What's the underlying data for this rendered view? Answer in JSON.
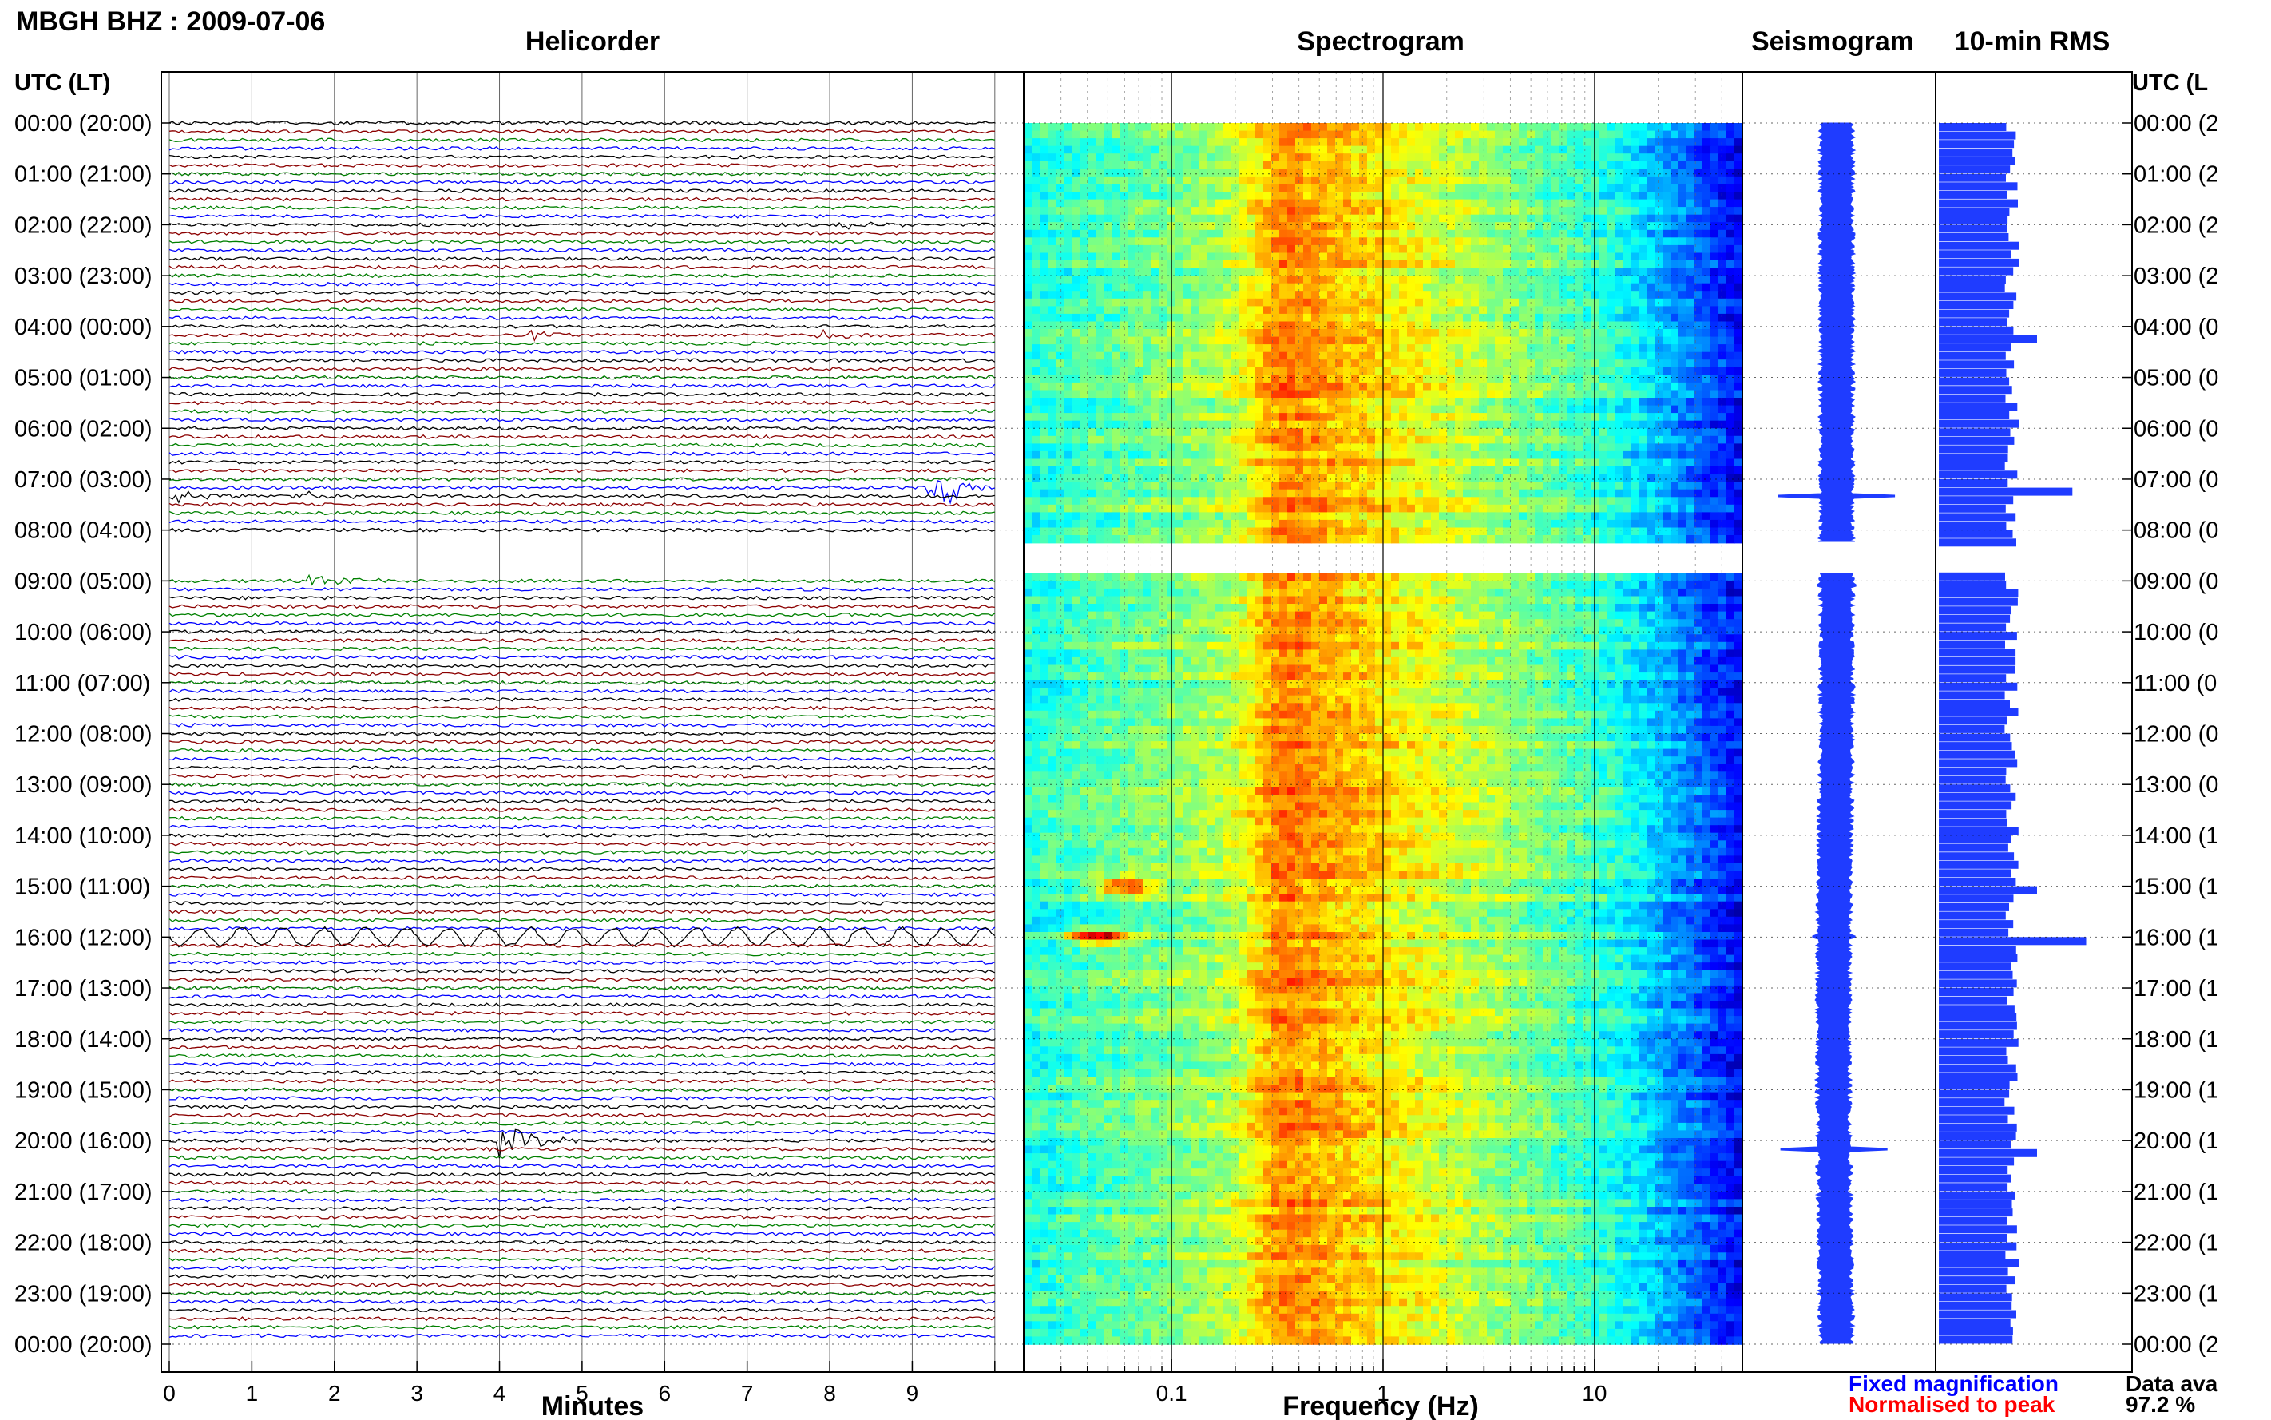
{
  "header": {
    "title": "MBGH BHZ : 2009-07-06"
  },
  "panels": {
    "helicorder": "Helicorder",
    "spectrogram": "Spectrogram",
    "seismogram": "Seismogram",
    "rms": "10-min RMS"
  },
  "time_axis": {
    "header_left": "UTC (LT)",
    "header_right": "UTC (L",
    "rows": [
      {
        "left": "00:00 (20:00)",
        "right": "00:00 (2"
      },
      {
        "left": "01:00 (21:00)",
        "right": "01:00 (2"
      },
      {
        "left": "02:00 (22:00)",
        "right": "02:00 (2"
      },
      {
        "left": "03:00 (23:00)",
        "right": "03:00 (2"
      },
      {
        "left": "04:00 (00:00)",
        "right": "04:00 (0"
      },
      {
        "left": "05:00 (01:00)",
        "right": "05:00 (0"
      },
      {
        "left": "06:00 (02:00)",
        "right": "06:00 (0"
      },
      {
        "left": "07:00 (03:00)",
        "right": "07:00 (0"
      },
      {
        "left": "08:00 (04:00)",
        "right": "08:00 (0"
      },
      {
        "left": "09:00 (05:00)",
        "right": "09:00 (0"
      },
      {
        "left": "10:00 (06:00)",
        "right": "10:00 (0"
      },
      {
        "left": "11:00 (07:00)",
        "right": "11:00 (0"
      },
      {
        "left": "12:00 (08:00)",
        "right": "12:00 (0"
      },
      {
        "left": "13:00 (09:00)",
        "right": "13:00 (0"
      },
      {
        "left": "14:00 (10:00)",
        "right": "14:00 (1"
      },
      {
        "left": "15:00 (11:00)",
        "right": "15:00 (1"
      },
      {
        "left": "16:00 (12:00)",
        "right": "16:00 (1"
      },
      {
        "left": "17:00 (13:00)",
        "right": "17:00 (1"
      },
      {
        "left": "18:00 (14:00)",
        "right": "18:00 (1"
      },
      {
        "left": "19:00 (15:00)",
        "right": "19:00 (1"
      },
      {
        "left": "20:00 (16:00)",
        "right": "20:00 (1"
      },
      {
        "left": "21:00 (17:00)",
        "right": "21:00 (1"
      },
      {
        "left": "22:00 (18:00)",
        "right": "22:00 (1"
      },
      {
        "left": "23:00 (19:00)",
        "right": "23:00 (1"
      },
      {
        "left": "00:00 (20:00)",
        "right": "00:00 (2"
      }
    ]
  },
  "footer": {
    "fixed_magnification": "Fixed magnification",
    "normalised_to_peak": "Normalised to peak",
    "data_availability_label": "Data ava",
    "data_availability_value": "97.2 %"
  },
  "colors": {
    "trace_cycle": [
      "#000000",
      "#8b0000",
      "#008000",
      "#0000ff"
    ],
    "fixed_magnification": "#0000ff",
    "normalised_to_peak": "#ff0000",
    "rms_fill": "#1f3cff",
    "seismogram_fill": "#1f3cff"
  },
  "chart_data": [
    {
      "type": "line",
      "panel": "helicorder",
      "title": "Helicorder",
      "xlabel": "Minutes",
      "ylabel": "UTC (LT)",
      "xlim": [
        0,
        10
      ],
      "xticks": [
        "0",
        "1",
        "2",
        "3",
        "4",
        "5",
        "6",
        "7",
        "8",
        "9"
      ],
      "lines_per_hour": 6,
      "hours": 24,
      "gaps_utc_hours": [
        [
          8.2,
          8.9
        ]
      ],
      "events": [
        {
          "utc": "02:00",
          "minute": 8.2,
          "amplitude": 0.15
        },
        {
          "utc": "04:10",
          "minute": 4.5,
          "amplitude": 0.2
        },
        {
          "utc": "04:10",
          "minute": 7.9,
          "amplitude": 0.25
        },
        {
          "utc": "07:20",
          "minute": 0.1,
          "amplitude": 0.3
        },
        {
          "utc": "07:20",
          "minute": 1.6,
          "amplitude": 0.2
        },
        {
          "utc": "07:10",
          "minute": 9.3,
          "amplitude": 1.0
        },
        {
          "utc": "09:00",
          "minute": 1.8,
          "amplitude": 0.25
        },
        {
          "utc": "16:00",
          "minute": 0.0,
          "amplitude": 0.6,
          "note": "long-period oscillation"
        },
        {
          "utc": "20:00",
          "minute": 4.1,
          "amplitude": 0.7
        }
      ]
    },
    {
      "type": "heatmap",
      "panel": "spectrogram",
      "title": "Spectrogram",
      "xlabel": "Frequency (Hz)",
      "xscale": "log",
      "xlim": [
        0.02,
        50
      ],
      "xticks": [
        "0.1",
        "1",
        "10"
      ],
      "ylim_utc_hours": [
        0,
        24
      ],
      "colormap": "jet",
      "microseism_peak_hz": 0.35,
      "gaps_utc_hours": [
        [
          8.2,
          8.9
        ]
      ],
      "hot_spots": [
        {
          "utc": "15:00",
          "freq_hz": 0.06
        },
        {
          "utc": "16:00",
          "freq_hz": 0.045
        }
      ]
    },
    {
      "type": "area",
      "panel": "seismogram",
      "title": "Seismogram",
      "ylim_utc_hours": [
        0,
        24
      ],
      "half_width_relative": 0.08,
      "spikes": [
        {
          "utc": "04:15",
          "relative": 0.15
        },
        {
          "utc": "07:20",
          "relative": 0.6
        },
        {
          "utc": "09:05",
          "relative": 0.2
        },
        {
          "utc": "16:00",
          "relative": 0.22
        },
        {
          "utc": "20:10",
          "relative": 0.55
        }
      ]
    },
    {
      "type": "bar",
      "panel": "rms",
      "title": "10-min RMS",
      "orientation": "horizontal",
      "ylim_utc_hours": [
        0,
        24
      ],
      "bin_minutes": 10,
      "baseline_relative": 0.38,
      "spikes": [
        {
          "utc": "04:10",
          "relative": 0.5
        },
        {
          "utc": "07:10",
          "relative": 0.68
        },
        {
          "utc": "15:00",
          "relative": 0.5
        },
        {
          "utc": "16:00",
          "relative": 0.75
        },
        {
          "utc": "20:10",
          "relative": 0.5
        }
      ]
    }
  ]
}
